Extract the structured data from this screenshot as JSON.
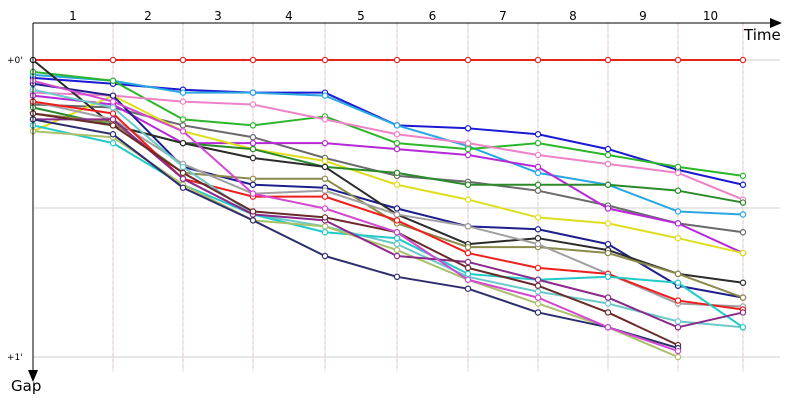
{
  "chart_data": {
    "type": "line",
    "xlabel": "Time",
    "ylabel": "Gap",
    "x_ticks": [
      "1",
      "2",
      "3",
      "4",
      "5",
      "6",
      "7",
      "8",
      "9",
      "10"
    ],
    "y_ticks": [
      "+0'",
      "+1'"
    ],
    "ylim": [
      0,
      1
    ],
    "y_inverted": true,
    "grid": true,
    "series": [
      {
        "color": "#e8241e",
        "y": [
          0.0,
          0.0,
          0.0,
          0.0,
          0.0,
          0.0,
          0.0,
          0.0,
          0.0,
          0.0,
          0.0
        ]
      },
      {
        "color": "#1a1ad2",
        "y": [
          0.06,
          0.08,
          0.1,
          0.11,
          0.11,
          0.22,
          0.23,
          0.25,
          0.3,
          0.37,
          0.42
        ]
      },
      {
        "color": "#2aa7e2",
        "y": [
          0.05,
          0.07,
          0.11,
          0.11,
          0.12,
          0.22,
          0.29,
          0.38,
          0.42,
          0.51,
          0.52
        ]
      },
      {
        "color": "#2bb62b",
        "y": [
          0.04,
          0.07,
          0.2,
          0.22,
          0.19,
          0.28,
          0.3,
          0.28,
          0.32,
          0.36,
          0.39
        ]
      },
      {
        "color": "#ee82c8",
        "y": [
          0.11,
          0.12,
          0.14,
          0.15,
          0.2,
          0.25,
          0.28,
          0.32,
          0.35,
          0.38,
          0.47
        ]
      },
      {
        "color": "#6a6a6a",
        "y": [
          0.15,
          0.16,
          0.22,
          0.26,
          0.33,
          0.39,
          0.41,
          0.44,
          0.49,
          0.55,
          0.58
        ]
      },
      {
        "color": "#b628d8",
        "y": [
          0.12,
          0.15,
          0.28,
          0.28,
          0.28,
          0.3,
          0.32,
          0.36,
          0.5,
          0.55,
          0.65
        ]
      },
      {
        "color": "#dede1e",
        "y": [
          0.24,
          0.12,
          0.24,
          0.3,
          0.34,
          0.42,
          0.47,
          0.53,
          0.55,
          0.6,
          0.65
        ]
      },
      {
        "color": "#2a8a2a",
        "y": [
          0.16,
          0.22,
          0.28,
          0.3,
          0.36,
          0.38,
          0.42,
          0.42,
          0.42,
          0.44,
          0.48
        ]
      },
      {
        "color": "#1e1e8c",
        "y": [
          0.08,
          0.12,
          0.36,
          0.42,
          0.43,
          0.5,
          0.56,
          0.57,
          0.62,
          0.76,
          0.8
        ]
      },
      {
        "color": "#2b2b2b",
        "y": [
          0.0,
          0.22,
          0.28,
          0.33,
          0.36,
          0.52,
          0.62,
          0.6,
          0.64,
          0.72,
          0.75
        ]
      },
      {
        "color": "#8a8a4a",
        "y": [
          0.18,
          0.21,
          0.38,
          0.4,
          0.4,
          0.55,
          0.63,
          0.63,
          0.65,
          0.72,
          0.8
        ]
      },
      {
        "color": "#a0a0a0",
        "y": [
          0.14,
          0.2,
          0.35,
          0.45,
          0.44,
          0.52,
          0.56,
          0.62,
          0.72,
          0.82,
          0.83
        ]
      },
      {
        "color": "#ee1e1e",
        "y": [
          0.14,
          0.18,
          0.4,
          0.46,
          0.46,
          0.54,
          0.65,
          0.7,
          0.72,
          0.81,
          0.84
        ]
      },
      {
        "color": "#6acac8",
        "y": [
          0.1,
          0.16,
          0.36,
          0.52,
          0.56,
          0.62,
          0.73,
          0.78,
          0.82,
          0.88,
          0.9
        ]
      },
      {
        "color": "#22cac8",
        "y": [
          0.22,
          0.28,
          0.42,
          0.52,
          0.58,
          0.6,
          0.72,
          0.74,
          0.73,
          0.75,
          0.9
        ]
      },
      {
        "color": "#aac06a",
        "y": [
          0.24,
          0.26,
          0.42,
          0.54,
          0.56,
          0.64,
          0.74,
          0.82,
          0.9,
          1.0
        ]
      },
      {
        "color": "#8a2a8a",
        "y": [
          0.2,
          0.2,
          0.4,
          0.52,
          0.54,
          0.66,
          0.68,
          0.74,
          0.8,
          0.9,
          0.85
        ]
      },
      {
        "color": "#6a2a2a",
        "y": [
          0.18,
          0.22,
          0.38,
          0.51,
          0.53,
          0.58,
          0.7,
          0.76,
          0.85,
          0.96
        ]
      },
      {
        "color": "#2e2e6e",
        "y": [
          0.2,
          0.25,
          0.43,
          0.54,
          0.66,
          0.73,
          0.77,
          0.85,
          0.9,
          0.97
        ]
      },
      {
        "color": "#d24ad2",
        "y": [
          0.07,
          0.14,
          0.24,
          0.45,
          0.5,
          0.58,
          0.74,
          0.8,
          0.9,
          0.98
        ]
      }
    ]
  }
}
